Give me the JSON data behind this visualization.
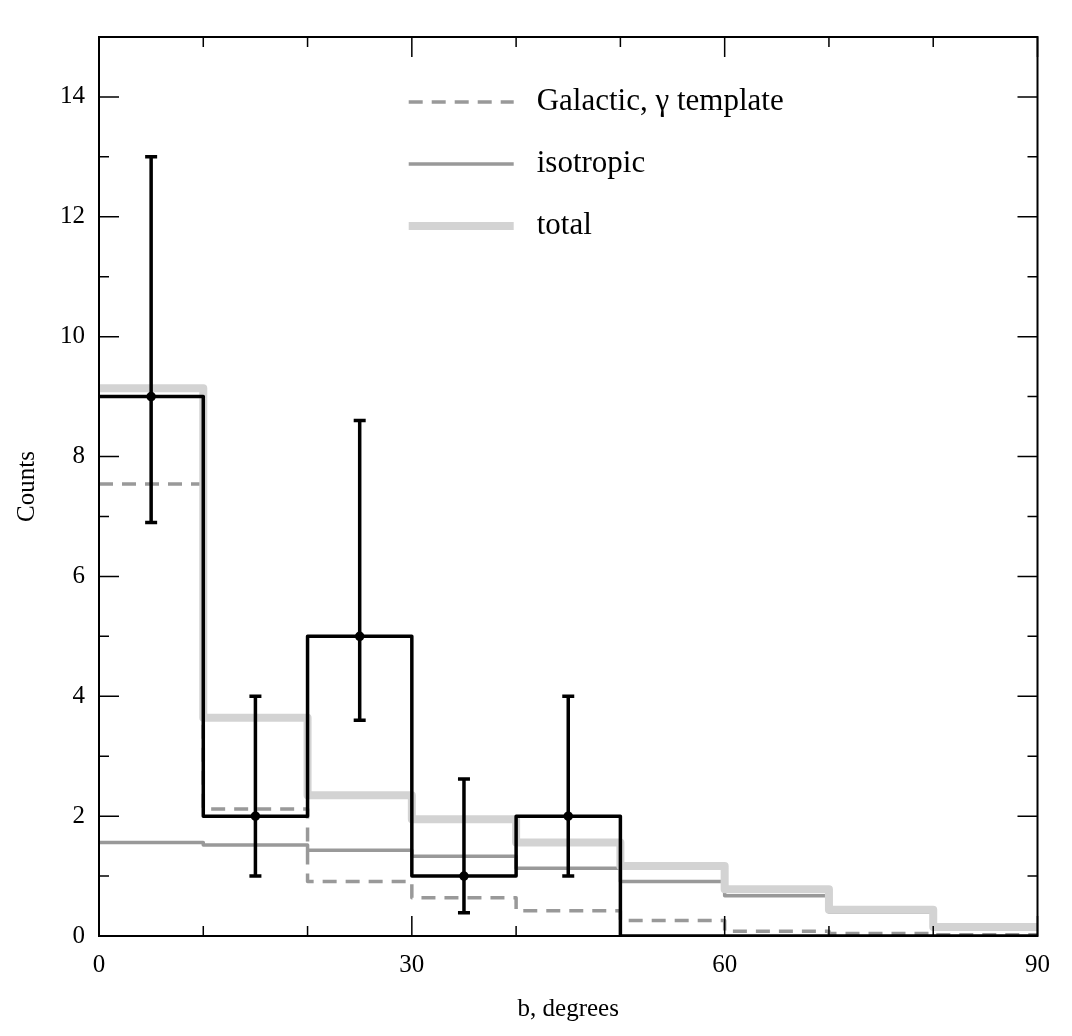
{
  "chart_data": {
    "type": "histogram",
    "xlabel": "b, degrees",
    "ylabel": "Counts",
    "bins": [
      0,
      10,
      20,
      30,
      40,
      50,
      60,
      70,
      80,
      90
    ],
    "series": [
      {
        "name": "Galactic, γ template",
        "color": "#999999",
        "line_style": "dashed",
        "values": [
          7.54,
          2.12,
          0.91,
          0.64,
          0.42,
          0.26,
          0.08,
          0.04,
          0.02
        ]
      },
      {
        "name": "isotropic",
        "color": "#999999",
        "line_style": "solid",
        "values": [
          1.56,
          1.52,
          1.43,
          1.33,
          1.13,
          0.91,
          0.67,
          0.4,
          0.13
        ]
      },
      {
        "name": "total",
        "color": "#d3d3d3",
        "line_style": "solid",
        "values": [
          9.14,
          3.64,
          2.35,
          1.95,
          1.56,
          1.17,
          0.78,
          0.44,
          0.15
        ]
      },
      {
        "color": "#000000",
        "line_style": "solid",
        "values": [
          9,
          2,
          5,
          1,
          2,
          0,
          0,
          0,
          0
        ]
      },
      {
        "type": "scatter",
        "color": "#000000",
        "marker": "circle",
        "x": [
          5,
          15,
          25,
          35,
          45
        ],
        "values": [
          9,
          2,
          5,
          1,
          2
        ],
        "errors": [
          [
            6.9,
            13
          ],
          [
            1,
            4
          ],
          [
            3.6,
            8.6
          ],
          [
            0.39,
            2.62
          ],
          [
            1,
            4
          ]
        ]
      }
    ],
    "xlim": [
      0,
      90
    ],
    "xticks": [
      0,
      {
        "value": 10,
        "label": null
      },
      {
        "value": 20,
        "label": null
      },
      30,
      {
        "value": 40,
        "label": null
      },
      {
        "value": 50,
        "label": null
      },
      60,
      {
        "value": 70,
        "label": null
      },
      {
        "value": 80,
        "label": null
      },
      90
    ],
    "ylim": [
      0,
      15
    ],
    "yticks": [
      0,
      {
        "value": 1,
        "label": null
      },
      2,
      {
        "value": 3,
        "label": null
      },
      4,
      {
        "value": 5,
        "label": null
      },
      6,
      {
        "value": 7,
        "label": null
      },
      8,
      {
        "value": 9,
        "label": null
      },
      10,
      {
        "value": 11,
        "label": null
      },
      12,
      {
        "value": 13,
        "label": null
      },
      14,
      {
        "value": 15,
        "label": null
      }
    ],
    "legend": "top right",
    "grid": false
  }
}
